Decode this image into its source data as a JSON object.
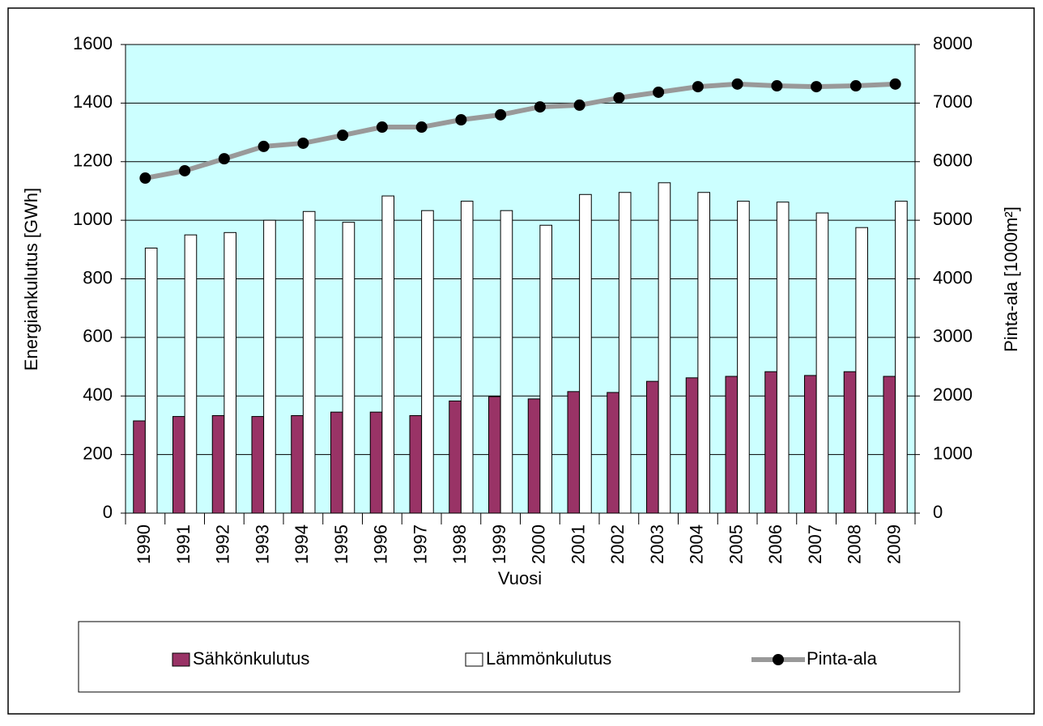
{
  "chart_data": {
    "type": "bar",
    "x_label": "Vuosi",
    "y_label": "Energiankulutus [GWh]",
    "y2_label": "Pinta-ala [1000m²]",
    "categories": [
      "1990",
      "1991",
      "1992",
      "1993",
      "1994",
      "1995",
      "1996",
      "1997",
      "1998",
      "1999",
      "2000",
      "2001",
      "2002",
      "2003",
      "2004",
      "2005",
      "2006",
      "2007",
      "2008",
      "2009"
    ],
    "series": [
      {
        "name": "Sähkönkulutus",
        "type": "bar",
        "color": "#993366",
        "values": [
          315,
          330,
          333,
          330,
          333,
          345,
          345,
          333,
          383,
          398,
          390,
          415,
          412,
          450,
          462,
          467,
          483,
          470,
          483,
          467
        ]
      },
      {
        "name": "Lämmönkulutus",
        "type": "bar",
        "color": "#ffffff",
        "values": [
          905,
          950,
          958,
          1000,
          1030,
          993,
          1083,
          1033,
          1065,
          1033,
          983,
          1088,
          1095,
          1128,
          1095,
          1065,
          1062,
          1025,
          975,
          1065
        ]
      },
      {
        "name": "Pinta-ala",
        "type": "line",
        "axis": "y2",
        "color": "#999999",
        "values": [
          5720,
          5845,
          6050,
          6260,
          6315,
          6450,
          6590,
          6590,
          6715,
          6800,
          6935,
          6965,
          7090,
          7185,
          7280,
          7325,
          7295,
          7280,
          7295,
          7325
        ]
      }
    ],
    "ylim": [
      0,
      1600
    ],
    "yticks": [
      0,
      200,
      400,
      600,
      800,
      1000,
      1200,
      1400,
      1600
    ],
    "y2lim": [
      0,
      8000
    ],
    "y2ticks": [
      0,
      1000,
      2000,
      3000,
      4000,
      5000,
      6000,
      7000,
      8000
    ],
    "grid": true,
    "legend": "bottom",
    "plot_background": "#ccffff"
  }
}
